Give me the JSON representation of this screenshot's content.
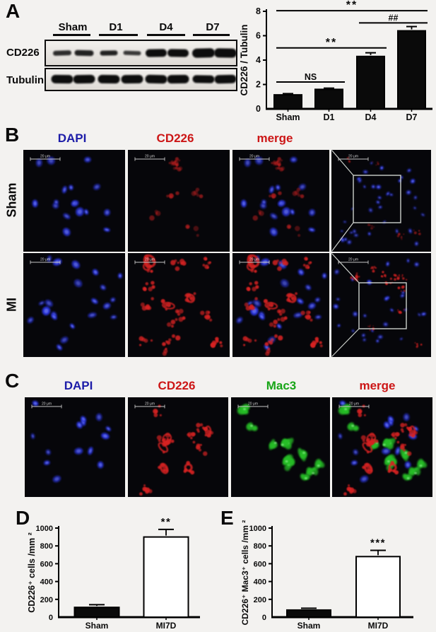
{
  "scalebar_text": "20 μm",
  "panel_a": {
    "label": "A",
    "blot": {
      "groups": [
        "Sham",
        "D1",
        "D4",
        "D7"
      ],
      "rows": [
        {
          "label": "CD226"
        },
        {
          "label": "Tubulin"
        }
      ],
      "cd226_band_heights": [
        7,
        8,
        7,
        6,
        11,
        11,
        13,
        13
      ],
      "cd226_band_opacity": [
        0.85,
        0.9,
        0.9,
        0.8,
        1,
        1,
        1,
        1
      ],
      "tubulin_band_heights": [
        12,
        12,
        12,
        12,
        12,
        12,
        11,
        12
      ]
    }
  },
  "panel_b": {
    "label": "B",
    "headers": [
      {
        "text": "DAPI",
        "color": "#1c1ca8"
      },
      {
        "text": "CD226",
        "color": "#cc1616"
      },
      {
        "text": "merge",
        "color": "#cc1616"
      }
    ],
    "row_labels": [
      "Sham",
      "MI"
    ]
  },
  "panel_c": {
    "label": "C",
    "headers": [
      {
        "text": "DAPI",
        "color": "#1c1ca8"
      },
      {
        "text": "CD226",
        "color": "#cc1616"
      },
      {
        "text": "Mac3",
        "color": "#17a517"
      },
      {
        "text": "merge",
        "color": "#cc1616"
      }
    ]
  },
  "panel_d": {
    "label": "D"
  },
  "panel_e": {
    "label": "E"
  },
  "chart_data": [
    {
      "type": "bar",
      "categories": [
        "Sham",
        "D1",
        "D4",
        "D7"
      ],
      "values": [
        1.15,
        1.6,
        4.3,
        6.4
      ],
      "errors": [
        0.1,
        0.1,
        0.3,
        0.35
      ],
      "title": "",
      "xlabel": "",
      "ylabel": "CD226 / Tubulin",
      "ylim": [
        0,
        8
      ],
      "yticks": [
        0,
        2,
        4,
        6,
        8
      ],
      "bar_color": "#0a0a0a",
      "grid": false,
      "significance": [
        {
          "from": 0,
          "to": 1,
          "y": 2.2,
          "label": "NS"
        },
        {
          "from": 0,
          "to": 2,
          "y": 5.0,
          "label": "**"
        },
        {
          "from": 0,
          "to": 3,
          "y": 8.05,
          "label": "**"
        },
        {
          "from": 2,
          "to": 3,
          "y": 7.05,
          "label": "##"
        }
      ]
    },
    {
      "type": "bar",
      "categories": [
        "Sham",
        "MI7D"
      ],
      "values": [
        110,
        900
      ],
      "errors": [
        30,
        85
      ],
      "title": "",
      "xlabel": "",
      "ylabel": "CD226⁺ cells /mm ²",
      "ylim": [
        0,
        1000
      ],
      "yticks": [
        0,
        200,
        400,
        600,
        800,
        1000
      ],
      "bar_fills": [
        "#0a0a0a",
        "#ffffff"
      ],
      "grid": false,
      "significance": [
        {
          "bar": 1,
          "label": "**"
        }
      ]
    },
    {
      "type": "bar",
      "categories": [
        "Sham",
        "MI7D"
      ],
      "values": [
        80,
        680
      ],
      "errors": [
        20,
        70
      ],
      "title": "",
      "xlabel": "",
      "ylabel": "CD226⁺ Mac3⁺ cells /mm ²",
      "ylim": [
        0,
        1000
      ],
      "yticks": [
        0,
        200,
        400,
        600,
        800,
        1000
      ],
      "bar_fills": [
        "#0a0a0a",
        "#ffffff"
      ],
      "grid": false,
      "significance": [
        {
          "bar": 1,
          "label": "***"
        }
      ]
    }
  ]
}
